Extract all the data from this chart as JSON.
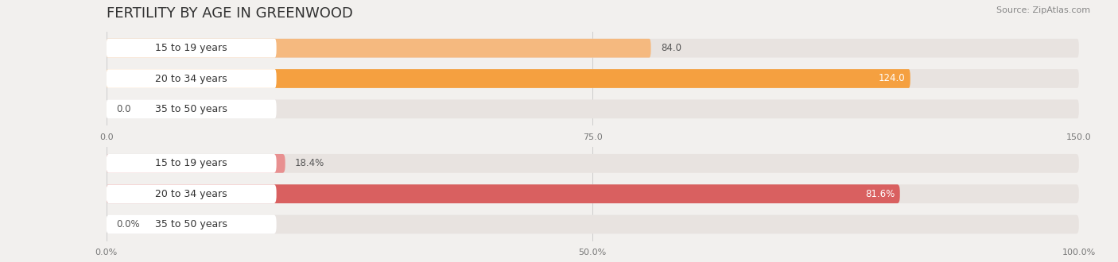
{
  "title": "FERTILITY BY AGE IN GREENWOOD",
  "source": "Source: ZipAtlas.com",
  "top_chart": {
    "categories": [
      "15 to 19 years",
      "20 to 34 years",
      "35 to 50 years"
    ],
    "values": [
      84.0,
      124.0,
      0.0
    ],
    "xlim": [
      0,
      150
    ],
    "xticks": [
      0.0,
      75.0,
      150.0
    ],
    "xtick_labels": [
      "0.0",
      "75.0",
      "150.0"
    ],
    "bar_colors": [
      "#F5B97F",
      "#F5A040",
      "#F5C89A"
    ],
    "bar_bg_color": "#E8E3E0"
  },
  "bottom_chart": {
    "categories": [
      "15 to 19 years",
      "20 to 34 years",
      "35 to 50 years"
    ],
    "values": [
      18.4,
      81.6,
      0.0
    ],
    "xlim": [
      0,
      100
    ],
    "xticks": [
      0.0,
      50.0,
      100.0
    ],
    "xtick_labels": [
      "0.0%",
      "50.0%",
      "100.0%"
    ],
    "bar_colors": [
      "#E89090",
      "#D96060",
      "#EAA8A8"
    ],
    "bar_bg_color": "#E8E3E0"
  },
  "bg_color": "#F2F0EE",
  "white_label_bg": "#FFFFFF",
  "title_fontsize": 13,
  "label_fontsize": 9,
  "tick_fontsize": 8,
  "value_fontsize": 8.5,
  "source_fontsize": 8
}
